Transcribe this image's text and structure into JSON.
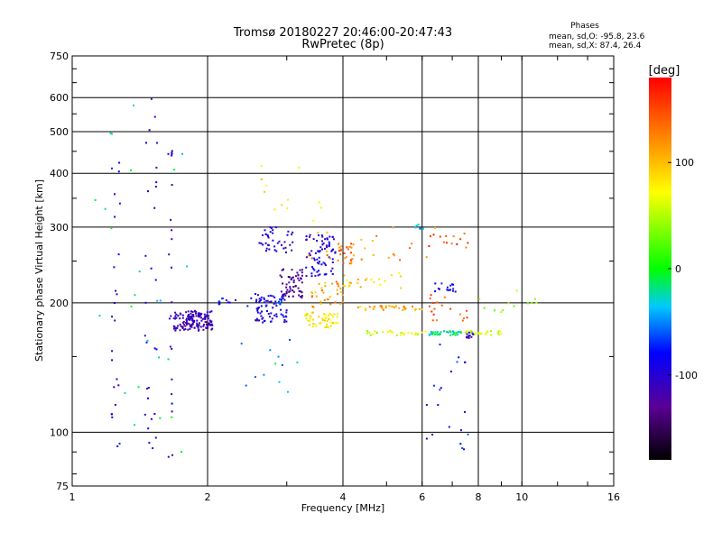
{
  "chart_data": {
    "type": "scatter",
    "title": "Tromsø 20180227 20:46:00-20:47:43",
    "subtitle": "RwPretec (8p)",
    "xlabel": "Frequency [MHz]",
    "ylabel": "Stationary phase Virtual Height [km]",
    "x_scale": "log",
    "y_scale": "log",
    "xlim": [
      1,
      16
    ],
    "ylim": [
      75,
      750
    ],
    "x_ticks": [
      1,
      2,
      4,
      6,
      8,
      10,
      16
    ],
    "x_ticklabels": [
      "1",
      "2",
      "4",
      "6",
      "8",
      "10",
      "16"
    ],
    "y_ticks": [
      75,
      100,
      200,
      300,
      400,
      500,
      600,
      750
    ],
    "y_ticklabels": [
      "75",
      "100",
      "200",
      "300",
      "400",
      "500",
      "600",
      "750"
    ],
    "grid": true,
    "stats": {
      "heading": "Phases",
      "line_o": "mean, sd,O: -95.8, 23.6",
      "line_x": "mean, sd,X:  87.4, 26.4"
    },
    "colorbar": {
      "label": "[deg]",
      "min": -180,
      "max": 180,
      "ticks": [
        100,
        0,
        -100
      ],
      "ticklabels": [
        "100",
        "0",
        "-100"
      ],
      "placement": "right"
    },
    "clusters": [
      {
        "f": [
          1.68,
          2.05
        ],
        "h": [
          172,
          192
        ],
        "phase": -115,
        "n": 150
      },
      {
        "f": [
          2.55,
          3.0
        ],
        "h": [
          180,
          210
        ],
        "phase": -95,
        "n": 70
      },
      {
        "f": [
          2.9,
          3.25
        ],
        "h": [
          205,
          240
        ],
        "phase": -130,
        "n": 55
      },
      {
        "f": [
          2.6,
          3.1
        ],
        "h": [
          260,
          300
        ],
        "phase": -100,
        "n": 40
      },
      {
        "f": [
          3.3,
          3.85
        ],
        "h": [
          230,
          290
        ],
        "phase": -95,
        "n": 75
      },
      {
        "f": [
          3.3,
          3.9
        ],
        "h": [
          175,
          190
        ],
        "phase": 80,
        "n": 55
      },
      {
        "f": [
          3.4,
          4.0
        ],
        "h": [
          195,
          225
        ],
        "phase": 115,
        "n": 35
      },
      {
        "f": [
          3.9,
          4.2
        ],
        "h": [
          245,
          275
        ],
        "phase": 135,
        "n": 25
      },
      {
        "f": [
          4.3,
          6.0
        ],
        "h": [
          192,
          197
        ],
        "phase": 110,
        "n": 35
      },
      {
        "f": [
          4.0,
          5.5
        ],
        "h": [
          215,
          235
        ],
        "phase": 90,
        "n": 22
      },
      {
        "f": [
          4.5,
          6.5
        ],
        "h": [
          168,
          172
        ],
        "phase": 60,
        "n": 30
      },
      {
        "f": [
          6.2,
          7.4
        ],
        "h": [
          168,
          172
        ],
        "phase": -20,
        "n": 40
      },
      {
        "f": [
          7.5,
          9.2
        ],
        "h": [
          168,
          172
        ],
        "phase": 55,
        "n": 25
      },
      {
        "f": [
          7.5,
          7.8
        ],
        "h": [
          165,
          171
        ],
        "phase": -110,
        "n": 12
      },
      {
        "f": [
          6.4,
          7.2
        ],
        "h": [
          212,
          222
        ],
        "phase": -90,
        "n": 16
      },
      {
        "f": [
          5.8,
          6.1
        ],
        "h": [
          297,
          305
        ],
        "phase": -40,
        "n": 8
      },
      {
        "f": [
          6.2,
          7.6
        ],
        "h": [
          265,
          290
        ],
        "phase": 150,
        "n": 14
      },
      {
        "f": [
          6.2,
          7.6
        ],
        "h": [
          180,
          210
        ],
        "phase": 140,
        "n": 18
      },
      {
        "f": [
          1.22,
          1.28
        ],
        "h": [
          85,
          600
        ],
        "phase": -95,
        "n": 24
      },
      {
        "f": [
          1.45,
          1.55
        ],
        "h": [
          80,
          640
        ],
        "phase": -100,
        "n": 28
      },
      {
        "f": [
          1.63,
          1.67
        ],
        "h": [
          85,
          460
        ],
        "phase": -110,
        "n": 22
      },
      {
        "f": [
          1.1,
          1.8
        ],
        "h": [
          85,
          620
        ],
        "phase": -20,
        "n": 25
      },
      {
        "f": [
          2.3,
          3.3
        ],
        "h": [
          120,
          170
        ],
        "phase": -40,
        "n": 12
      },
      {
        "f": [
          6.1,
          7.7
        ],
        "h": [
          90,
          160
        ],
        "phase": -80,
        "n": 20
      },
      {
        "f": [
          2.6,
          3.6
        ],
        "h": [
          300,
          420
        ],
        "phase": 80,
        "n": 12
      },
      {
        "f": [
          8.0,
          11.0
        ],
        "h": [
          185,
          220
        ],
        "phase": 40,
        "n": 12
      },
      {
        "f": [
          3.2,
          6.5
        ],
        "h": [
          250,
          300
        ],
        "phase": 120,
        "n": 25
      },
      {
        "f": [
          2.1,
          3.0
        ],
        "h": [
          195,
          205
        ],
        "phase": -80,
        "n": 25
      }
    ]
  }
}
